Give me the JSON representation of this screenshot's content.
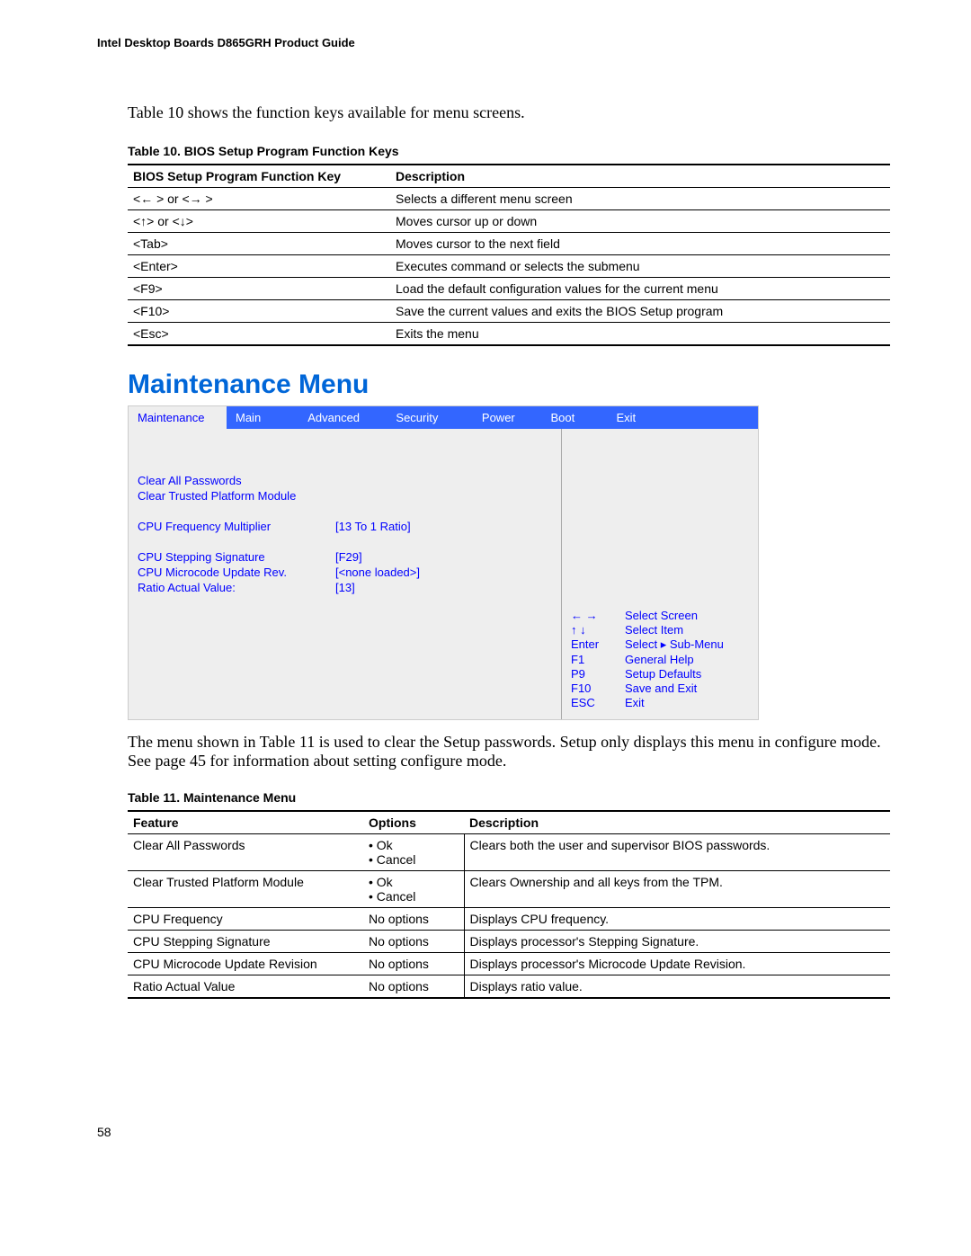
{
  "doc_header": "Intel Desktop Boards D865GRH Product Guide",
  "intro": "Table 10 shows the function keys available for menu screens.",
  "table10": {
    "caption": "Table 10.   BIOS Setup Program Function Keys",
    "headers": {
      "key": "BIOS Setup Program Function Key",
      "desc": "Description"
    },
    "rows": [
      {
        "key": "<← > or <→ >",
        "desc": "Selects a different menu screen"
      },
      {
        "key": "<↑> or <↓>",
        "desc": "Moves cursor up or down"
      },
      {
        "key": "<Tab>",
        "desc": "Moves cursor to the next field"
      },
      {
        "key": "<Enter>",
        "desc": "Executes command or selects the submenu"
      },
      {
        "key": "<F9>",
        "desc": "Load the default configuration values for the current menu"
      },
      {
        "key": "<F10>",
        "desc": "Save the current values and exits the BIOS Setup program"
      },
      {
        "key": "<Esc>",
        "desc": "Exits the menu"
      }
    ]
  },
  "section_heading": "Maintenance Menu",
  "bios": {
    "tabs": [
      "Maintenance",
      "Main",
      "Advanced",
      "Security",
      "Power",
      "Boot",
      "Exit"
    ],
    "tab_widths": [
      110,
      78,
      98,
      95,
      74,
      70,
      175
    ],
    "active_tab_index": 0,
    "left_items": [
      {
        "label": "Clear All Passwords",
        "value": ""
      },
      {
        "label": "Clear Trusted Platform Module",
        "value": ""
      },
      {
        "label": "",
        "value": ""
      },
      {
        "label": "CPU Frequency Multiplier",
        "value": "[13 To 1 Ratio]"
      },
      {
        "label": "",
        "value": ""
      },
      {
        "label": "CPU Stepping Signature",
        "value": "[F29]"
      },
      {
        "label": "CPU Microcode Update Rev.",
        "value": "[<none loaded>]"
      },
      {
        "label": "Ratio Actual Value:",
        "value": "[13]"
      }
    ],
    "help": [
      {
        "k": "←   →",
        "v": "Select Screen"
      },
      {
        "k": "↑  ↓",
        "v": "Select Item"
      },
      {
        "k": "Enter",
        "v": "Select  ▸ Sub-Menu"
      },
      {
        "k": "F1",
        "v": "General Help"
      },
      {
        "k": "P9",
        "v": "Setup Defaults"
      },
      {
        "k": "F10",
        "v": "Save and Exit"
      },
      {
        "k": "ESC",
        "v": "Exit"
      }
    ],
    "colors": {
      "tab_active_bg": "#eeeeee",
      "tab_inactive_bg": "#3366ff",
      "tab_active_fg": "#0000ff",
      "tab_inactive_fg": "#ffffff",
      "body_bg": "#eeeeee",
      "text": "#0000ff"
    }
  },
  "desc_para": "The menu shown in Table 11 is used to clear the Setup passwords.  Setup only displays this menu in configure mode.  See page 45 for information about setting configure mode.",
  "table11": {
    "caption": "Table 11.   Maintenance Menu",
    "headers": {
      "feature": "Feature",
      "options": "Options",
      "desc": "Description"
    },
    "rows": [
      {
        "feature": "Clear All Passwords",
        "options": "•  Ok\n•  Cancel",
        "desc": "Clears both the user and supervisor BIOS passwords."
      },
      {
        "feature": "Clear Trusted Platform Module",
        "options": "•  Ok\n•  Cancel",
        "desc": "Clears Ownership and all keys from the TPM."
      },
      {
        "feature": "CPU Frequency",
        "options": "No options",
        "desc": "Displays CPU frequency."
      },
      {
        "feature": "CPU Stepping Signature",
        "options": "No options",
        "desc": "Displays processor's Stepping Signature."
      },
      {
        "feature": "CPU Microcode Update Revision",
        "options": "No options",
        "desc": "Displays processor's Microcode Update Revision."
      },
      {
        "feature": "Ratio Actual Value",
        "options": "No options",
        "desc": "Displays ratio value."
      }
    ]
  },
  "page_number": "58"
}
